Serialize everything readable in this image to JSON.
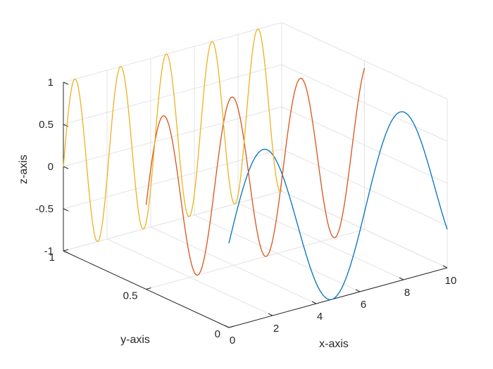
{
  "chart_data": {
    "type": "line",
    "projection": "3d",
    "xlabel": "x-axis",
    "ylabel": "y-axis",
    "zlabel": "z-axis",
    "xlim": [
      0,
      10
    ],
    "ylim": [
      0,
      1
    ],
    "zlim": [
      -1,
      1
    ],
    "xticks": [
      {
        "value": 0,
        "label": "0"
      },
      {
        "value": 2,
        "label": "2"
      },
      {
        "value": 4,
        "label": "4"
      },
      {
        "value": 6,
        "label": "6"
      },
      {
        "value": 8,
        "label": "8"
      },
      {
        "value": 10,
        "label": "10"
      }
    ],
    "yticks": [
      {
        "value": 0,
        "label": "0"
      },
      {
        "value": 0.5,
        "label": "0.5"
      },
      {
        "value": 1,
        "label": "1"
      }
    ],
    "zticks": [
      {
        "value": -1,
        "label": "-1"
      },
      {
        "value": -0.5,
        "label": "-0.5"
      },
      {
        "value": 0,
        "label": "0"
      },
      {
        "value": 0.5,
        "label": "0.5"
      },
      {
        "value": 1,
        "label": "1"
      }
    ],
    "grid": true,
    "series": [
      {
        "color": "#0072BD",
        "y": 0.0,
        "x_range": [
          0,
          10
        ],
        "z": "sin(x)"
      },
      {
        "color": "#D95319",
        "y": 0.5,
        "x_range": [
          0,
          10
        ],
        "z": "sin(2x)"
      },
      {
        "color": "#EDB120",
        "y": 1.0,
        "x_range": [
          0,
          10
        ],
        "z": "sin(3x)"
      }
    ]
  }
}
